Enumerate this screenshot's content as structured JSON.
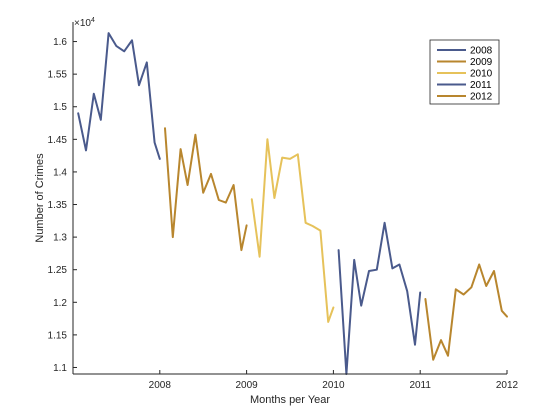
{
  "chart_data": {
    "type": "line",
    "title": "",
    "xlabel": "Months per Year",
    "ylabel": "Number of Crimes",
    "y_multiplier_label": "×10",
    "y_multiplier_exponent": "4",
    "xlim": [
      2007,
      2012
    ],
    "ylim": [
      1.09,
      1.63
    ],
    "x_ticks": [
      2008,
      2009,
      2010,
      2011,
      2012
    ],
    "x_tick_labels": [
      "2008",
      "2009",
      "2010",
      "2011",
      "2012"
    ],
    "y_ticks": [
      1.1,
      1.15,
      1.2,
      1.25,
      1.3,
      1.35,
      1.4,
      1.45,
      1.5,
      1.55,
      1.6
    ],
    "y_tick_labels": [
      "1.1",
      "1.15",
      "1.2",
      "1.25",
      "1.3",
      "1.35",
      "1.4",
      "1.45",
      "1.5",
      "1.55",
      "1.6"
    ],
    "grid": false,
    "legend_position": "top-right",
    "series": [
      {
        "name": "2008",
        "color": "#4a5a8c",
        "x": [
          2007.06,
          2007.15,
          2007.24,
          2007.32,
          2007.41,
          2007.5,
          2007.59,
          2007.68,
          2007.76,
          2007.85,
          2007.94,
          2008.0
        ],
        "values": [
          1.49,
          1.433,
          1.52,
          1.48,
          1.613,
          1.593,
          1.585,
          1.602,
          1.533,
          1.568,
          1.445,
          1.42
        ]
      },
      {
        "name": "2009",
        "color": "#b8862e",
        "x": [
          2008.06,
          2008.15,
          2008.24,
          2008.32,
          2008.41,
          2008.5,
          2008.59,
          2008.68,
          2008.76,
          2008.85,
          2008.94,
          2009.0
        ],
        "values": [
          1.467,
          1.3,
          1.435,
          1.38,
          1.457,
          1.368,
          1.397,
          1.357,
          1.353,
          1.38,
          1.28,
          1.318
        ]
      },
      {
        "name": "2010",
        "color": "#e6c25a",
        "x": [
          2009.06,
          2009.15,
          2009.24,
          2009.32,
          2009.41,
          2009.5,
          2009.59,
          2009.68,
          2009.76,
          2009.85,
          2009.94,
          2010.0
        ],
        "values": [
          1.358,
          1.27,
          1.45,
          1.36,
          1.422,
          1.42,
          1.427,
          1.322,
          1.317,
          1.31,
          1.17,
          1.192
        ]
      },
      {
        "name": "2011",
        "color": "#4a5a8c",
        "x": [
          2010.06,
          2010.15,
          2010.24,
          2010.32,
          2010.41,
          2010.5,
          2010.59,
          2010.68,
          2010.76,
          2010.85,
          2010.94,
          2011.0
        ],
        "values": [
          1.28,
          1.09,
          1.265,
          1.195,
          1.248,
          1.25,
          1.322,
          1.252,
          1.258,
          1.217,
          1.135,
          1.215
        ]
      },
      {
        "name": "2012",
        "color": "#b8862e",
        "x": [
          2011.06,
          2011.15,
          2011.24,
          2011.32,
          2011.41,
          2011.5,
          2011.59,
          2011.68,
          2011.76,
          2011.85,
          2011.94,
          2012.0
        ],
        "values": [
          1.205,
          1.112,
          1.142,
          1.118,
          1.22,
          1.212,
          1.223,
          1.258,
          1.225,
          1.248,
          1.187,
          1.178
        ]
      }
    ]
  }
}
